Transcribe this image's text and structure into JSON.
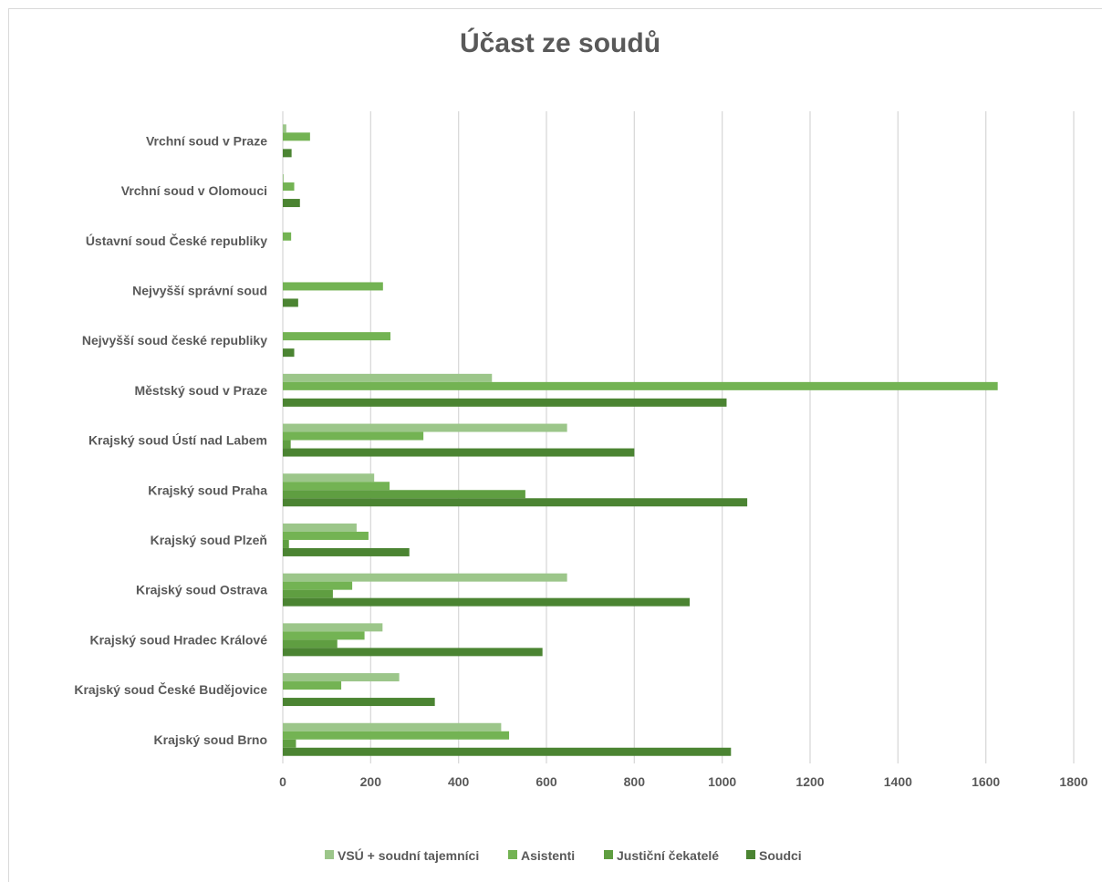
{
  "chart_data": {
    "type": "bar",
    "orientation": "horizontal",
    "title": "Účast ze soudů",
    "categories": [
      "Vrchní soud v Praze",
      "Vrchní soud v Olomouci",
      "Ústavní soud České republiky",
      "Nejvyšší správní soud",
      "Nejvyšší soud české republiky",
      "Městský soud v Praze",
      "Krajský soud Ústí nad Labem",
      "Krajský soud Praha",
      "Krajský soud Plzeň",
      "Krajský soud Ostrava",
      "Krajský soud Hradec Králové",
      "Krajský soud České Budějovice",
      "Krajský soud Brno"
    ],
    "series": [
      {
        "name": "VSÚ + soudní tajemníci",
        "color": "#9cc68a",
        "values": [
          8,
          2,
          0,
          0,
          0,
          476,
          647,
          208,
          168,
          647,
          227,
          265,
          497
        ]
      },
      {
        "name": "Asistenti",
        "color": "#73b353",
        "values": [
          62,
          26,
          19,
          228,
          245,
          1627,
          320,
          243,
          195,
          158,
          186,
          133,
          515
        ]
      },
      {
        "name": "Justiční čekatelé",
        "color": "#5f9e41",
        "values": [
          0,
          0,
          0,
          0,
          0,
          0,
          18,
          552,
          14,
          114,
          124,
          0,
          30
        ]
      },
      {
        "name": "Soudci",
        "color": "#4b8432",
        "values": [
          20,
          39,
          0,
          35,
          26,
          1010,
          800,
          1057,
          288,
          926,
          591,
          346,
          1020
        ]
      }
    ],
    "xlim": [
      0,
      1800
    ],
    "xticks": [
      "0",
      "200",
      "400",
      "600",
      "800",
      "1000",
      "1200",
      "1400",
      "1600",
      "1800"
    ],
    "grid": true,
    "legend_position": "bottom"
  }
}
